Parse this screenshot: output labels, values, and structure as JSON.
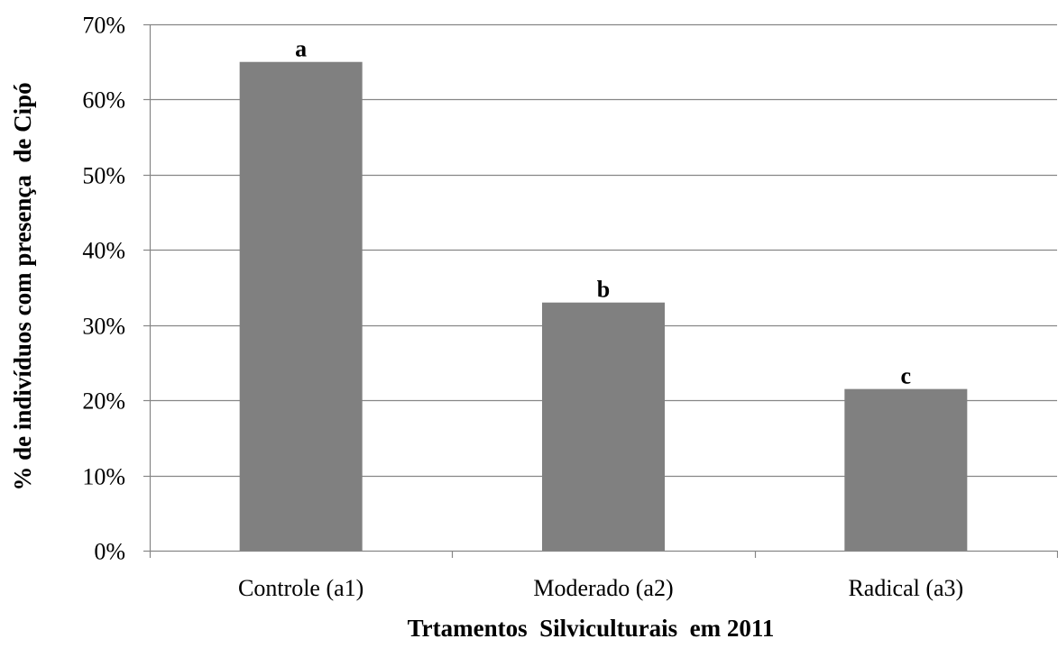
{
  "chart_data": {
    "type": "bar",
    "categories": [
      "Controle (a1)",
      "Moderado (a2)",
      "Radical (a3)"
    ],
    "values": [
      65,
      33,
      21.5
    ],
    "data_labels": [
      "a",
      "b",
      "c"
    ],
    "xlabel": "Trtamentos  Silviculturais  em 2011",
    "ylabel": "% de indivíduos com presença  de Cipó",
    "ylim": [
      0,
      70
    ],
    "yticks": [
      0,
      10,
      20,
      30,
      40,
      50,
      60,
      70
    ],
    "ytick_labels": [
      "0%",
      "10%",
      "20%",
      "30%",
      "40%",
      "50%",
      "60%",
      "70%"
    ],
    "grid": true,
    "legend": "none",
    "colors": {
      "bar": "#808080",
      "grid": "#868686",
      "axis": "#868686",
      "text": "#000000"
    }
  }
}
